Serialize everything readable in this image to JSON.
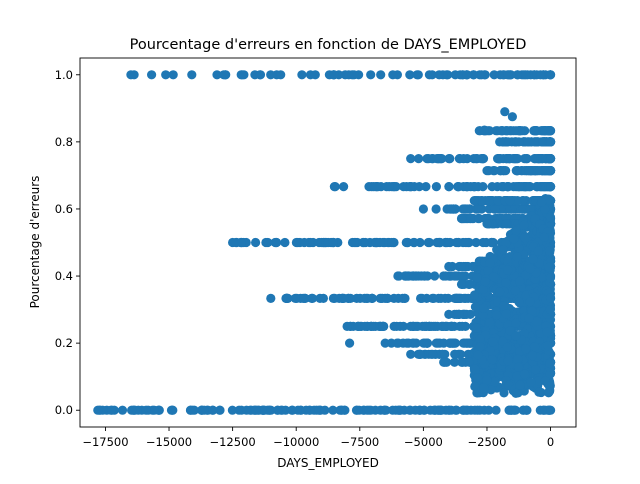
{
  "chart_data": {
    "type": "scatter",
    "title": "Pourcentage d'erreurs en fonction de DAYS_EMPLOYED",
    "xlabel": "DAYS_EMPLOYED",
    "ylabel": "Pourcentage d'erreurs",
    "xlim": [
      -18500,
      1000
    ],
    "ylim": [
      -0.05,
      1.05
    ],
    "xticks": [
      -17500,
      -15000,
      -12500,
      -10000,
      -7500,
      -5000,
      -2500,
      0
    ],
    "yticks": [
      0.0,
      0.2,
      0.4,
      0.6,
      0.8,
      1.0
    ],
    "xtick_labels": [
      "−17500",
      "−15000",
      "−12500",
      "−10000",
      "−7500",
      "−5000",
      "−2500",
      "0"
    ],
    "ytick_labels": [
      "0.0",
      "0.2",
      "0.4",
      "0.6",
      "0.8",
      "1.0"
    ],
    "grid": false,
    "marker_color": "#1f77b4",
    "series": [
      {
        "bands": [
          {
            "y": 1.0,
            "x_min": -16500,
            "x_max": 0,
            "density": 0.35
          },
          {
            "y": 0.0,
            "x_min": -17800,
            "x_max": 0,
            "density": 1.0
          },
          {
            "y": 0.5,
            "x_min": -12500,
            "x_max": 0,
            "density": 0.7
          },
          {
            "y": 0.3333,
            "x_min": -11000,
            "x_max": 0,
            "density": 0.7
          },
          {
            "y": 0.6667,
            "x_min": -8500,
            "x_max": 0,
            "density": 0.35
          },
          {
            "y": 0.25,
            "x_min": -8000,
            "x_max": 0,
            "density": 0.6
          },
          {
            "y": 0.75,
            "x_min": -5500,
            "x_max": 0,
            "density": 0.3
          },
          {
            "y": 0.2,
            "x_min": -6500,
            "x_max": 0,
            "density": 0.5
          },
          {
            "y": 0.4,
            "x_min": -6000,
            "x_max": 0,
            "density": 0.5
          },
          {
            "y": 0.6,
            "x_min": -4500,
            "x_max": 0,
            "density": 0.4
          },
          {
            "y": 0.1667,
            "x_min": -5500,
            "x_max": 0,
            "density": 0.4
          },
          {
            "y": 0.2857,
            "x_min": -4000,
            "x_max": 0,
            "density": 0.3
          },
          {
            "y": 0.4286,
            "x_min": -4000,
            "x_max": 0,
            "density": 0.3
          },
          {
            "y": 0.5714,
            "x_min": -3500,
            "x_max": 0,
            "density": 0.3
          },
          {
            "y": 0.1429,
            "x_min": -4200,
            "x_max": 0,
            "density": 0.3
          },
          {
            "y": 0.375,
            "x_min": -3500,
            "x_max": 0,
            "density": 0.3
          },
          {
            "y": 0.625,
            "x_min": -3000,
            "x_max": 0,
            "density": 0.3
          },
          {
            "y": 0.8333,
            "x_min": -2800,
            "x_max": 0,
            "density": 0.2
          },
          {
            "y": 0.8,
            "x_min": -2000,
            "x_max": 0,
            "density": 0.2
          },
          {
            "y": 0.7143,
            "x_min": -2500,
            "x_max": 0,
            "density": 0.2
          },
          {
            "y": 0.125,
            "x_min": -3000,
            "x_max": 0,
            "density": 0.3
          },
          {
            "y": 0.1111,
            "x_min": -2800,
            "x_max": 0,
            "density": 0.3
          },
          {
            "y": 0.2222,
            "x_min": -3000,
            "x_max": 0,
            "density": 0.3
          },
          {
            "y": 0.4444,
            "x_min": -2800,
            "x_max": 0,
            "density": 0.3
          },
          {
            "y": 0.5556,
            "x_min": -2500,
            "x_max": 0,
            "density": 0.3
          }
        ],
        "cloud": {
          "x_min": -3000,
          "x_max": 0,
          "y_min": 0.05,
          "y_max": 0.65,
          "count": 900
        },
        "outliers": [
          {
            "x": -1800,
            "y": 0.89
          },
          {
            "x": -1500,
            "y": 0.875
          },
          {
            "x": -2600,
            "y": 0.835
          },
          {
            "x": -7900,
            "y": 0.2
          },
          {
            "x": -5300,
            "y": 0.4
          },
          {
            "x": -4800,
            "y": 0.75
          },
          {
            "x": -5000,
            "y": 0.6
          }
        ]
      }
    ]
  }
}
